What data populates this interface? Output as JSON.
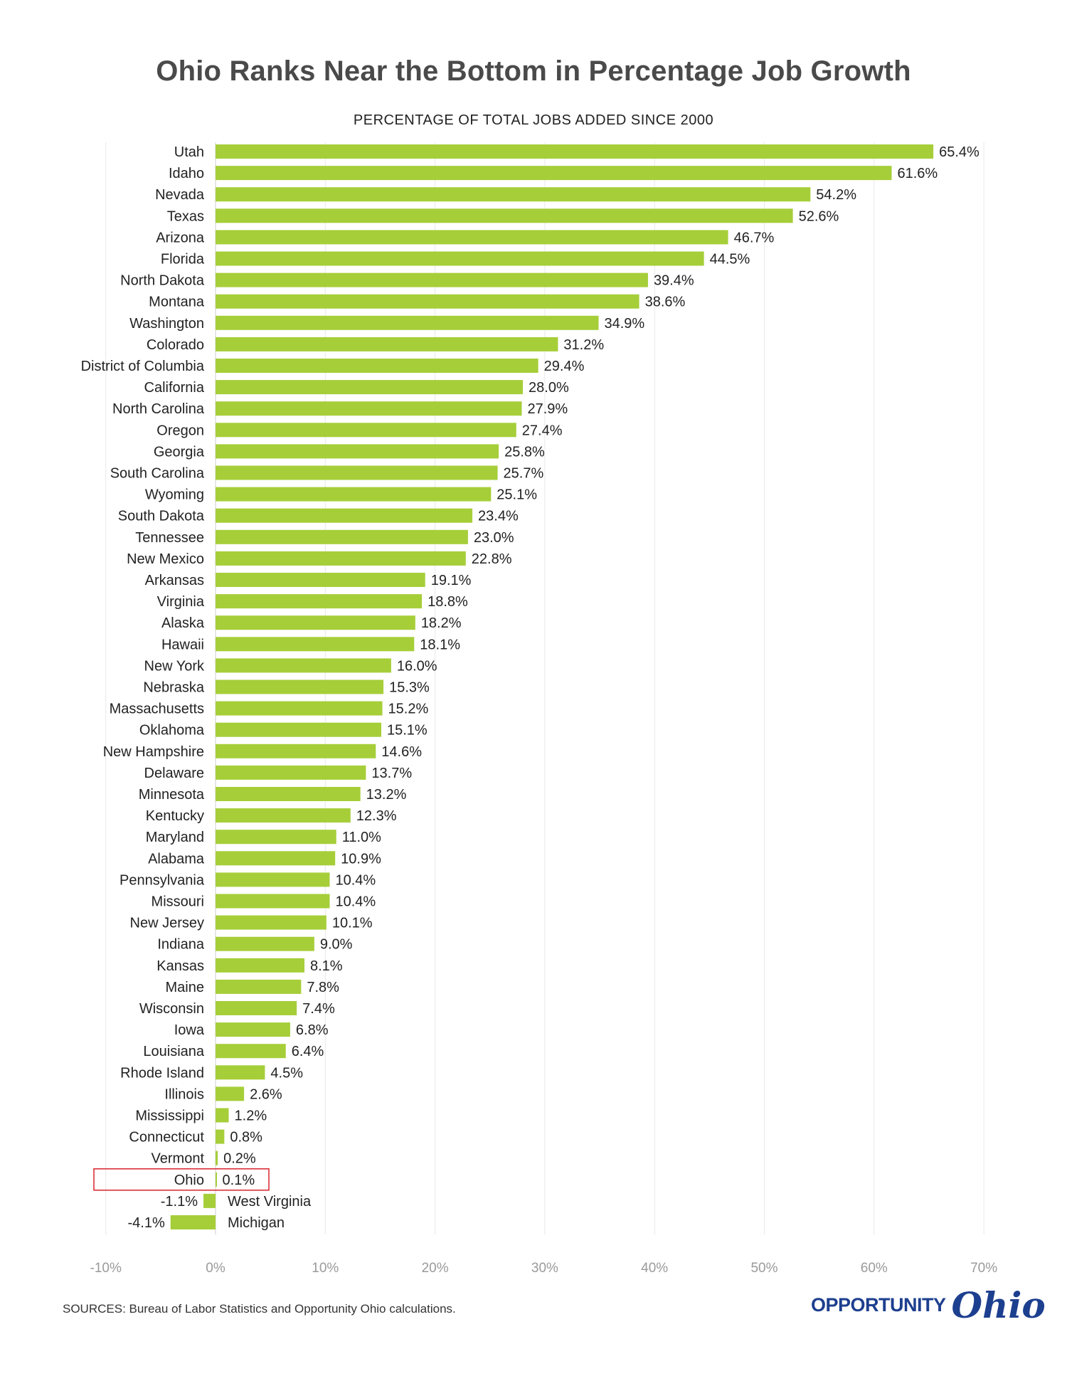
{
  "chart_data": {
    "type": "bar",
    "orientation": "horizontal",
    "title": "Ohio Ranks Near the Bottom in Percentage Job Growth",
    "subtitle": "PERCENTAGE OF TOTAL JOBS ADDED SINCE 2000",
    "xlim": [
      -10,
      70
    ],
    "xticks": [
      -10,
      0,
      10,
      20,
      30,
      40,
      50,
      60,
      70
    ],
    "xtick_labels": [
      "-10%",
      "0%",
      "10%",
      "20%",
      "30%",
      "40%",
      "50%",
      "60%",
      "70%"
    ],
    "grid": "vertical",
    "bar_color": "#a6ce39",
    "highlight_color": "#d9232d",
    "highlight_category": "Ohio",
    "categories": [
      "Utah",
      "Idaho",
      "Nevada",
      "Texas",
      "Arizona",
      "Florida",
      "North Dakota",
      "Montana",
      "Washington",
      "Colorado",
      "District of Columbia",
      "California",
      "North Carolina",
      "Oregon",
      "Georgia",
      "South Carolina",
      "Wyoming",
      "South Dakota",
      "Tennessee",
      "New Mexico",
      "Arkansas",
      "Virginia",
      "Alaska",
      "Hawaii",
      "New York",
      "Nebraska",
      "Massachusetts",
      "Oklahoma",
      "New Hampshire",
      "Delaware",
      "Minnesota",
      "Kentucky",
      "Maryland",
      "Alabama",
      "Pennsylvania",
      "Missouri",
      "New Jersey",
      "Indiana",
      "Kansas",
      "Maine",
      "Wisconsin",
      "Iowa",
      "Louisiana",
      "Rhode Island",
      "Illinois",
      "Mississippi",
      "Connecticut",
      "Vermont",
      "Ohio",
      "West Virginia",
      "Michigan"
    ],
    "values": [
      65.4,
      61.6,
      54.2,
      52.6,
      46.7,
      44.5,
      39.4,
      38.6,
      34.9,
      31.2,
      29.4,
      28.0,
      27.9,
      27.4,
      25.8,
      25.7,
      25.1,
      23.4,
      23.0,
      22.8,
      19.1,
      18.8,
      18.2,
      18.1,
      16.0,
      15.3,
      15.2,
      15.1,
      14.6,
      13.7,
      13.2,
      12.3,
      11.0,
      10.9,
      10.4,
      10.4,
      10.1,
      9.0,
      8.1,
      7.8,
      7.4,
      6.8,
      6.4,
      4.5,
      2.6,
      1.2,
      0.8,
      0.2,
      0.1,
      -1.1,
      -4.1
    ],
    "value_labels": [
      "65.4%",
      "61.6%",
      "54.2%",
      "52.6%",
      "46.7%",
      "44.5%",
      "39.4%",
      "38.6%",
      "34.9%",
      "31.2%",
      "29.4%",
      "28.0%",
      "27.9%",
      "27.4%",
      "25.8%",
      "25.7%",
      "25.1%",
      "23.4%",
      "23.0%",
      "22.8%",
      "19.1%",
      "18.8%",
      "18.2%",
      "18.1%",
      "16.0%",
      "15.3%",
      "15.2%",
      "15.1%",
      "14.6%",
      "13.7%",
      "13.2%",
      "12.3%",
      "11.0%",
      "10.9%",
      "10.4%",
      "10.4%",
      "10.1%",
      "9.0%",
      "8.1%",
      "7.8%",
      "7.4%",
      "6.8%",
      "6.4%",
      "4.5%",
      "2.6%",
      "1.2%",
      "0.8%",
      "0.2%",
      "0.1%",
      "-1.1%",
      "-4.1%"
    ]
  },
  "footer": {
    "source": "SOURCES: Bureau of Labor Statistics and Opportunity Ohio calculations.",
    "logo_word": "OPPORTUNITY",
    "logo_script": "Ohio"
  }
}
